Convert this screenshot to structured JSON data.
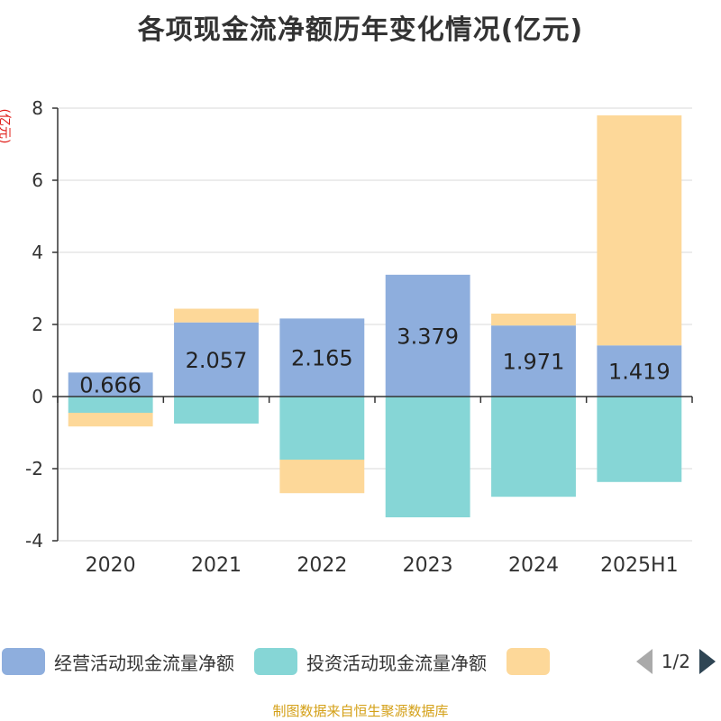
{
  "chart_data": {
    "type": "bar",
    "stacked": true,
    "title": "各项现金流净额历年变化情况(亿元)",
    "ylabel": "(亿元)",
    "categories": [
      "2020",
      "2021",
      "2022",
      "2023",
      "2024",
      "2025H1"
    ],
    "ylim": [
      -4,
      8
    ],
    "yticks": [
      -4,
      -2,
      0,
      2,
      4,
      6,
      8
    ],
    "grid": true,
    "series": [
      {
        "name": "经营活动现金流量净额",
        "color": "#8eaedd",
        "values": [
          0.666,
          2.057,
          2.165,
          3.379,
          1.971,
          1.419
        ]
      },
      {
        "name": "投资活动现金流量净额",
        "color": "#86d6d6",
        "values": [
          -0.45,
          -0.75,
          -1.75,
          -3.35,
          -2.78,
          -2.37
        ]
      },
      {
        "name": "",
        "color": "#fdd899",
        "values": [
          -0.38,
          0.38,
          -0.93,
          0,
          0.33,
          6.38
        ]
      }
    ],
    "data_labels": [
      "0.666",
      "2.057",
      "2.165",
      "3.379",
      "1.971",
      "1.419"
    ],
    "legend_position": "bottom"
  },
  "legend": {
    "page": "1/2"
  },
  "footer": "制图数据来自恒生聚源数据库"
}
